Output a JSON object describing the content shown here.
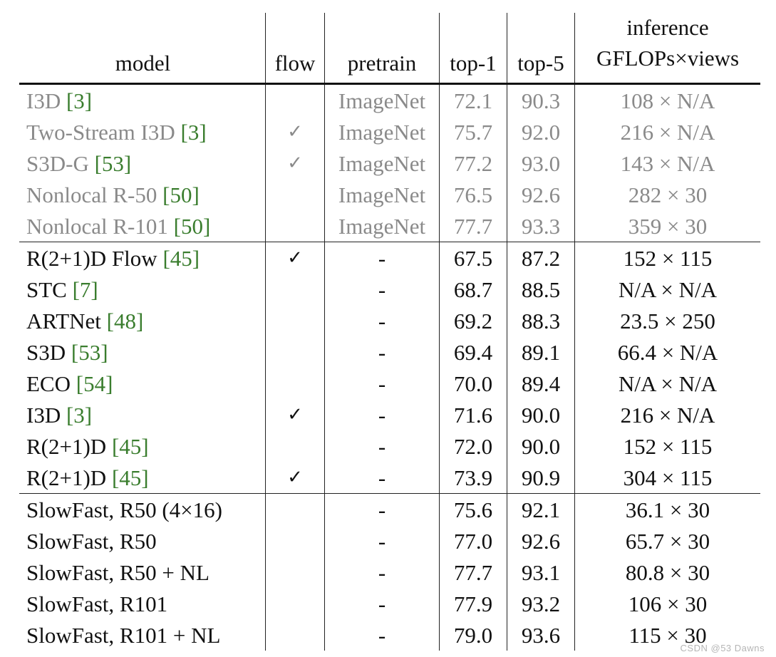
{
  "headers": {
    "model": "model",
    "flow": "flow",
    "pretrain": "pretrain",
    "top1": "top-1",
    "top5": "top-5",
    "inference_line1": "inference",
    "inference_line2": "GFLOPs×views"
  },
  "groups": [
    {
      "muted": true,
      "rows": [
        {
          "model": "I3D ",
          "ref": "[3]",
          "flow": "",
          "pretrain": "ImageNet",
          "top1": "72.1",
          "top5": "90.3",
          "gflops": "108 × N/A"
        },
        {
          "model": "Two-Stream I3D ",
          "ref": "[3]",
          "flow": "✓",
          "pretrain": "ImageNet",
          "top1": "75.7",
          "top5": "92.0",
          "gflops": "216 × N/A"
        },
        {
          "model": "S3D-G ",
          "ref": "[53]",
          "flow": "✓",
          "pretrain": "ImageNet",
          "top1": "77.2",
          "top5": "93.0",
          "gflops": "143 × N/A"
        },
        {
          "model": "Nonlocal R-50 ",
          "ref": "[50]",
          "flow": "",
          "pretrain": "ImageNet",
          "top1": "76.5",
          "top5": "92.6",
          "gflops": "282 × 30"
        },
        {
          "model": "Nonlocal R-101 ",
          "ref": "[50]",
          "flow": "",
          "pretrain": "ImageNet",
          "top1": "77.7",
          "top5": "93.3",
          "gflops": "359 × 30"
        }
      ]
    },
    {
      "muted": false,
      "rows": [
        {
          "model": "R(2+1)D Flow ",
          "ref": "[45]",
          "flow": "✓",
          "pretrain": "-",
          "top1": "67.5",
          "top5": "87.2",
          "gflops": "152 × 115"
        },
        {
          "model": "STC ",
          "ref": "[7]",
          "flow": "",
          "pretrain": "-",
          "top1": "68.7",
          "top5": "88.5",
          "gflops": "N/A × N/A"
        },
        {
          "model": "ARTNet ",
          "ref": "[48]",
          "flow": "",
          "pretrain": "-",
          "top1": "69.2",
          "top5": "88.3",
          "gflops": "23.5 × 250"
        },
        {
          "model": "S3D ",
          "ref": "[53]",
          "flow": "",
          "pretrain": "-",
          "top1": "69.4",
          "top5": "89.1",
          "gflops": "66.4 × N/A"
        },
        {
          "model": "ECO ",
          "ref": "[54]",
          "flow": "",
          "pretrain": "-",
          "top1": "70.0",
          "top5": "89.4",
          "gflops": "N/A × N/A"
        },
        {
          "model": "I3D ",
          "ref": "[3]",
          "flow": "✓",
          "pretrain": "-",
          "top1": "71.6",
          "top5": "90.0",
          "gflops": "216 × N/A"
        },
        {
          "model": "R(2+1)D ",
          "ref": "[45]",
          "flow": "",
          "pretrain": "-",
          "top1": "72.0",
          "top5": "90.0",
          "gflops": "152 × 115"
        },
        {
          "model": "R(2+1)D ",
          "ref": "[45]",
          "flow": "✓",
          "pretrain": "-",
          "top1": "73.9",
          "top5": "90.9",
          "gflops": "304 × 115"
        }
      ]
    },
    {
      "muted": false,
      "rows": [
        {
          "model": "SlowFast, R50 (4×16)",
          "ref": "",
          "flow": "",
          "pretrain": "-",
          "top1": "75.6",
          "top5": "92.1",
          "gflops": "36.1 × 30"
        },
        {
          "model": "SlowFast, R50",
          "ref": "",
          "flow": "",
          "pretrain": "-",
          "top1": "77.0",
          "top5": "92.6",
          "gflops": "65.7 × 30"
        },
        {
          "model": "SlowFast, R50 + NL",
          "ref": "",
          "flow": "",
          "pretrain": "-",
          "top1": "77.7",
          "top5": "93.1",
          "gflops": "80.8 × 30"
        },
        {
          "model": "SlowFast, R101",
          "ref": "",
          "flow": "",
          "pretrain": "-",
          "top1": "77.9",
          "top5": "93.2",
          "gflops": "106 × 30"
        },
        {
          "model": "SlowFast, R101 + NL",
          "ref": "",
          "flow": "",
          "pretrain": "-",
          "top1": "79.0",
          "top5": "93.6",
          "gflops": "115 × 30",
          "bold_top1": true,
          "bold_top5": true
        }
      ]
    }
  ],
  "watermark": "CSDN @53    Dawns"
}
